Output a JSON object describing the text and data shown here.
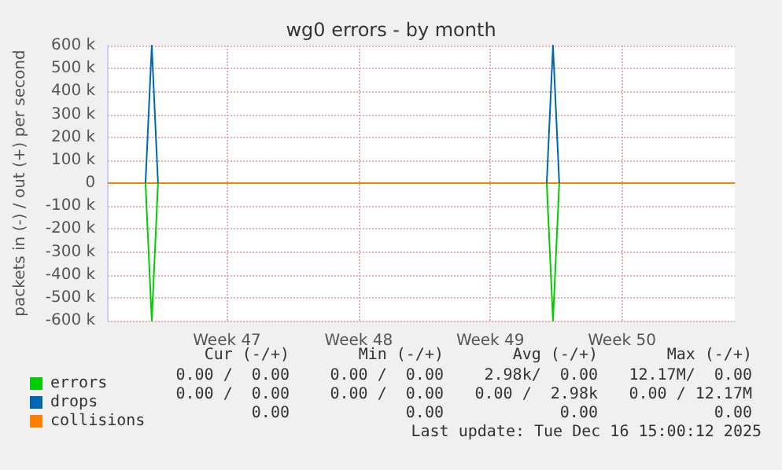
{
  "chart_data": {
    "type": "line",
    "title": "wg0 errors - by month",
    "ylabel": "packets in (-) / out (+) per second",
    "categories": [
      null,
      null,
      null,
      null,
      null,
      null,
      null,
      null,
      null,
      null,
      null,
      null,
      null,
      null,
      null,
      null,
      null,
      null,
      null,
      "Week 47",
      null,
      null,
      null,
      null,
      null,
      null,
      null,
      null,
      null,
      null,
      null,
      null,
      null,
      null,
      null,
      null,
      null,
      null,
      null,
      null,
      "Week 48",
      null,
      null,
      null,
      null,
      null,
      null,
      null,
      null,
      null,
      null,
      null,
      null,
      null,
      null,
      null,
      null,
      null,
      null,
      null,
      null,
      "Week 49",
      null,
      null,
      null,
      null,
      null,
      null,
      null,
      null,
      null,
      null,
      null,
      null,
      null,
      null,
      null,
      null,
      null,
      null,
      null,
      null,
      "Week 50",
      null,
      null,
      null,
      null,
      null,
      null,
      null,
      null,
      null,
      null,
      null,
      null,
      null,
      null,
      null,
      null,
      null,
      null
    ],
    "ylim": [
      -600000,
      600000
    ],
    "yticks": [
      {
        "value": -600000,
        "label": "-600 k"
      },
      {
        "value": -500000,
        "label": "-500 k"
      },
      {
        "value": -400000,
        "label": "-400 k"
      },
      {
        "value": -300000,
        "label": "-300 k"
      },
      {
        "value": -200000,
        "label": "-200 k"
      },
      {
        "value": -100000,
        "label": "-100 k"
      },
      0,
      {
        "value": 100000,
        "label": "100 k"
      },
      {
        "value": 200000,
        "label": "200 k"
      },
      {
        "value": 300000,
        "label": "300 k"
      },
      {
        "value": 400000,
        "label": "400 k"
      },
      {
        "value": 500000,
        "label": "500 k"
      },
      {
        "value": 600000,
        "label": "600 k"
      }
    ],
    "grid": true,
    "legend": "bottom left",
    "marker": "none",
    "line_style": "solid",
    "series": [
      {
        "name": "errors",
        "color": "#00cc00",
        "values": [
          null,
          null,
          null,
          null,
          null,
          null,
          0,
          -600000,
          0,
          null,
          null,
          null,
          null,
          null,
          null,
          null,
          null,
          null,
          null,
          null,
          null,
          null,
          null,
          null,
          null,
          null,
          null,
          null,
          null,
          null,
          null,
          null,
          null,
          null,
          null,
          null,
          null,
          null,
          null,
          null,
          null,
          null,
          null,
          null,
          null,
          null,
          null,
          null,
          null,
          null,
          null,
          null,
          null,
          null,
          null,
          null,
          null,
          null,
          null,
          null,
          null,
          null,
          null,
          null,
          null,
          null,
          null,
          null,
          null,
          null,
          0,
          -600000,
          0,
          null,
          null,
          null,
          null,
          null,
          null,
          null,
          null,
          null,
          null,
          null,
          null,
          null,
          null,
          null,
          null,
          null,
          null,
          null,
          null,
          null,
          null,
          null,
          null,
          null,
          null,
          null,
          null
        ]
      },
      {
        "name": "drops",
        "color": "#0066b3",
        "values": [
          null,
          null,
          null,
          null,
          null,
          null,
          0,
          600000,
          0,
          null,
          null,
          null,
          null,
          null,
          null,
          null,
          null,
          null,
          null,
          null,
          null,
          null,
          null,
          null,
          null,
          null,
          null,
          null,
          null,
          null,
          null,
          null,
          null,
          null,
          null,
          null,
          null,
          null,
          null,
          null,
          null,
          null,
          null,
          null,
          null,
          null,
          null,
          null,
          null,
          null,
          null,
          null,
          null,
          null,
          null,
          null,
          null,
          null,
          null,
          null,
          null,
          null,
          null,
          null,
          null,
          null,
          null,
          null,
          null,
          null,
          0,
          600000,
          0,
          null,
          null,
          null,
          null,
          null,
          null,
          null,
          null,
          null,
          null,
          null,
          null,
          null,
          null,
          null,
          null,
          null,
          null,
          null,
          null,
          null,
          null,
          null,
          null,
          null,
          null,
          null,
          null
        ]
      },
      {
        "name": "collisions",
        "color": "#ff8000",
        "values": [
          0,
          0,
          0,
          0,
          0,
          0,
          0,
          0,
          0,
          0,
          0,
          0,
          0,
          0,
          0,
          0,
          0,
          0,
          0,
          0,
          0,
          0,
          0,
          0,
          0,
          0,
          0,
          0,
          0,
          0,
          0,
          0,
          0,
          0,
          0,
          0,
          0,
          0,
          0,
          0,
          0,
          0,
          0,
          0,
          0,
          0,
          0,
          0,
          0,
          0,
          0,
          0,
          0,
          0,
          0,
          0,
          0,
          0,
          0,
          0,
          0,
          0,
          0,
          0,
          0,
          0,
          0,
          0,
          0,
          0,
          0,
          0,
          0,
          0,
          0,
          0,
          0,
          0,
          0,
          0,
          0,
          0,
          0,
          0,
          0,
          0,
          0,
          0,
          0,
          0,
          0,
          0,
          0,
          0,
          0,
          0,
          0,
          0,
          0,
          0,
          0
        ]
      }
    ],
    "annotations": [
      "Cur (-/+)",
      "Min (-/+)",
      "Avg (-/+)",
      "Max (-/+)",
      "0.00 /  0.00",
      "0.00 /  0.00",
      "2.98k/  0.00",
      "12.17M/  0.00",
      "0.00 /  0.00",
      "0.00 /  0.00",
      "0.00 /  2.98k",
      "0.00 / 12.17M",
      "0.00",
      "0.00",
      "0.00",
      "0.00",
      "Last update: Tue Dec 16 15:00:12 2025"
    ]
  }
}
